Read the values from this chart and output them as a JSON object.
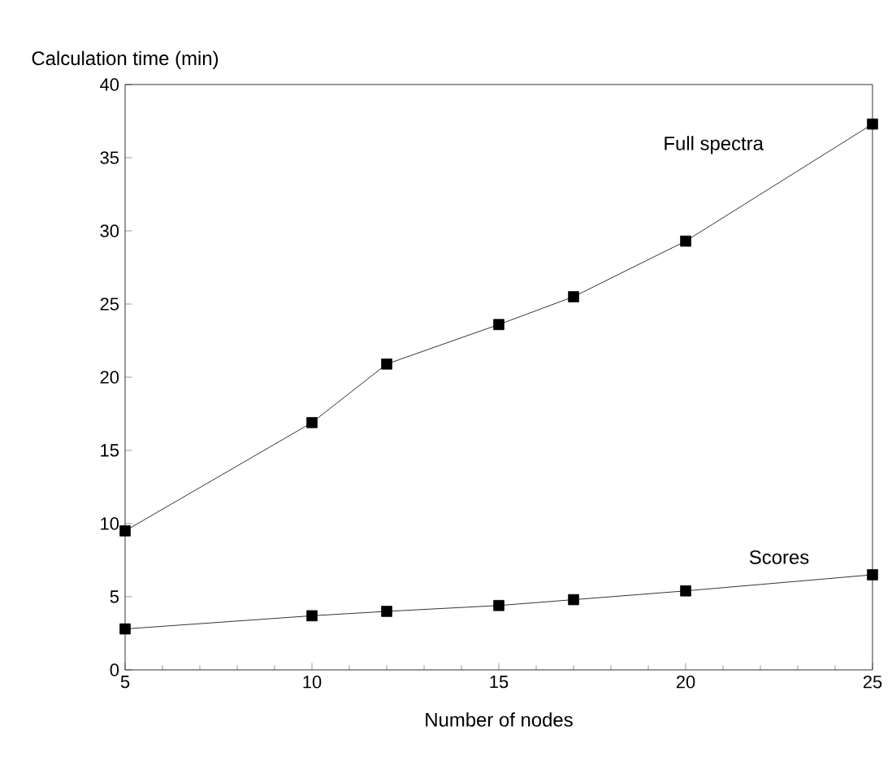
{
  "chart_data": {
    "type": "line",
    "xlabel": "Number of nodes",
    "ylabel": "Calculation time (min)",
    "xlim": [
      5,
      25
    ],
    "xticks": [
      5,
      10,
      15,
      20,
      25
    ],
    "ylim": [
      0,
      40
    ],
    "yticks": [
      0,
      5,
      10,
      15,
      20,
      25,
      30,
      35,
      40
    ],
    "grid": false,
    "legend": false,
    "marker": "square",
    "line_style": "solid",
    "series": [
      {
        "name": "Full spectra",
        "color": "#000000",
        "x": [
          5,
          10,
          12,
          15,
          17,
          20,
          25
        ],
        "values": [
          9.5,
          16.9,
          20.9,
          23.6,
          25.5,
          29.3,
          37.3
        ]
      },
      {
        "name": "Scores",
        "color": "#000000",
        "x": [
          5,
          10,
          12,
          15,
          17,
          20,
          25
        ],
        "values": [
          2.8,
          3.7,
          4.0,
          4.4,
          4.8,
          5.4,
          6.5
        ]
      }
    ]
  }
}
